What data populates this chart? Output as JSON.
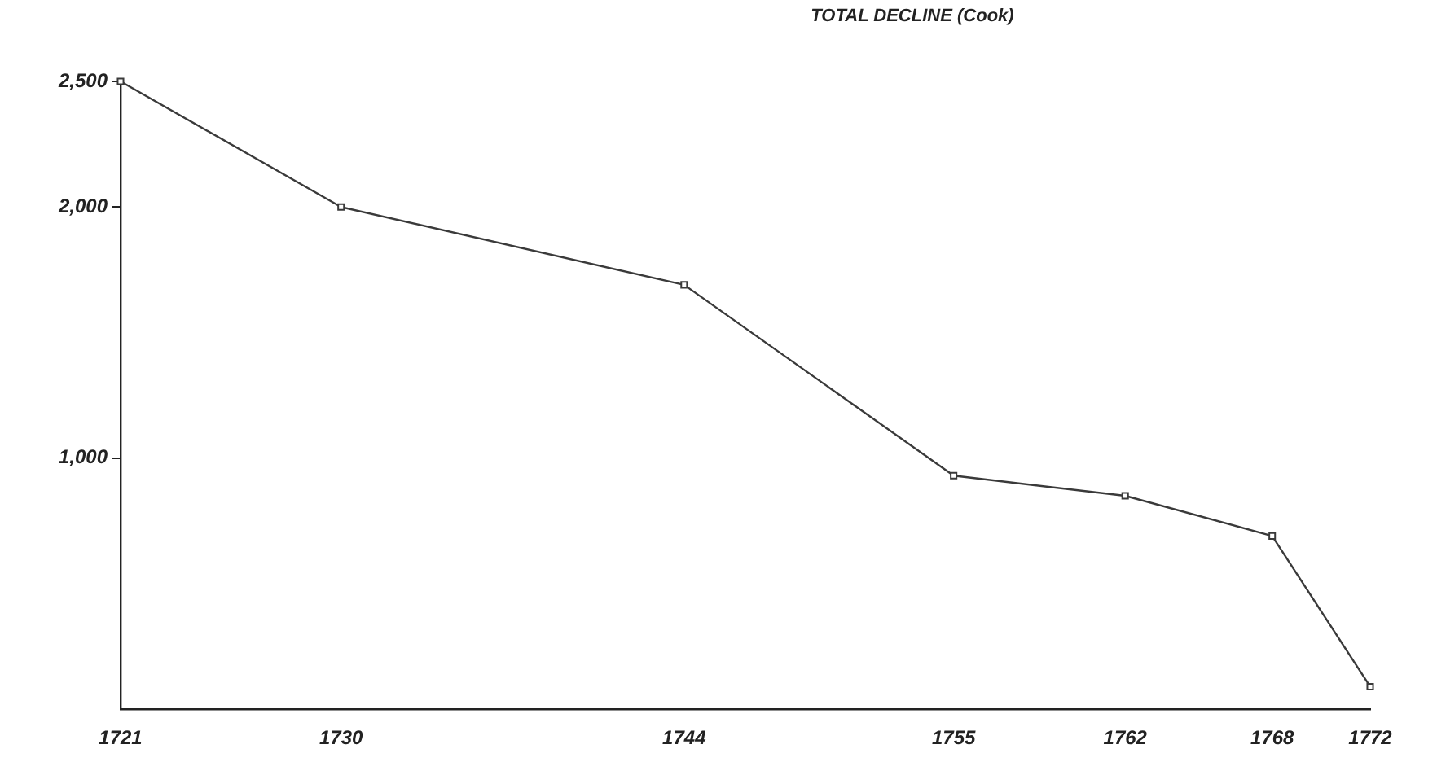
{
  "chart_data": {
    "type": "line",
    "title": "TOTAL DECLINE (Cook)",
    "x": [
      1721,
      1730,
      1744,
      1755,
      1762,
      1768,
      1772
    ],
    "series": [
      {
        "color": "#3a3a3a",
        "values": [
          2500,
          2000,
          1690,
          930,
          850,
          690,
          90
        ]
      }
    ],
    "xlim": [
      1721,
      1772
    ],
    "xticks": [
      1721,
      1730,
      1744,
      1755,
      1762,
      1768,
      1772
    ],
    "ylim": [
      0,
      2500
    ],
    "yticks": [
      {
        "value": 1000,
        "label": "1,000"
      },
      {
        "value": 2000,
        "label": "2,000"
      },
      {
        "value": 2500,
        "label": "2,500"
      }
    ],
    "grid": false,
    "legend": false,
    "marker": "square",
    "line_style": "solid"
  }
}
